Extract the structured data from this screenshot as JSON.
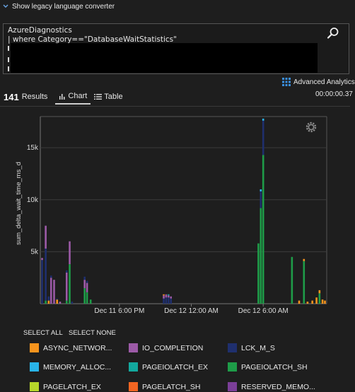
{
  "header": {
    "legacy_label": "Show legacy language converter"
  },
  "query": {
    "line1": "AzureDiagnostics",
    "line2": "| where Category==\"DatabaseWaitStatistics\""
  },
  "toolbar": {
    "advanced_label": "Advanced Analytics",
    "elapsed": "00:00:00.37"
  },
  "results": {
    "count": "141",
    "count_label": "Results",
    "tabs": [
      {
        "label": "Chart"
      },
      {
        "label": "Table"
      }
    ]
  },
  "chart_data": {
    "type": "bar",
    "stacked": true,
    "ylabel": "sum_delta_wait_time_ms_d",
    "ylim": [
      0,
      18000
    ],
    "y_ticks": [
      {
        "value": 5000,
        "label": "5k"
      },
      {
        "value": 10000,
        "label": "10k"
      },
      {
        "value": 15000,
        "label": "15k"
      }
    ],
    "x_ticks": [
      {
        "label": "Dec 11 6:00 PM",
        "hours": 18
      },
      {
        "label": "Dec 12 12:00 AM",
        "hours": 24
      },
      {
        "label": "Dec 12 6:00 AM",
        "hours": 30
      }
    ],
    "x_range_hours": [
      11.4,
      35.3
    ],
    "series_colors": {
      "ASYNC_NETWORK_IO": "#f7941d",
      "IO_COMPLETION": "#9c5aa7",
      "LCK_M_S": "#1f2f6e",
      "MEMORY_ALLOCATION_EXT": "#29b3e8",
      "PAGEIOLATCH_EX": "#13a89e",
      "PAGEIOLATCH_SH": "#1e9c48",
      "PAGELATCH_EX": "#b6d72a",
      "PAGELATCH_SH": "#f26522",
      "RESERVED_MEMORY_ALLOCATION_EXT": "#7b3f98"
    },
    "bars": [
      {
        "h": 11.55,
        "s": [
          [
            "LCK_M_S",
            4200
          ],
          [
            "IO_COMPLETION",
            200
          ]
        ]
      },
      {
        "h": 11.85,
        "s": [
          [
            "PAGEIOLATCH_SH",
            300
          ],
          [
            "LCK_M_S",
            5000
          ],
          [
            "IO_COMPLETION",
            2200
          ]
        ]
      },
      {
        "h": 12.1,
        "s": [
          [
            "ASYNC_NETWORK_IO",
            300
          ],
          [
            "LCK_M_S",
            400
          ]
        ]
      },
      {
        "h": 12.3,
        "s": [
          [
            "IO_COMPLETION",
            2500
          ],
          [
            "LCK_M_S",
            200
          ]
        ]
      },
      {
        "h": 12.55,
        "s": [
          [
            "IO_COMPLETION",
            2300
          ]
        ]
      },
      {
        "h": 12.8,
        "s": [
          [
            "ASYNC_NETWORK_IO",
            400
          ],
          [
            "LCK_M_S",
            100
          ]
        ]
      },
      {
        "h": 13.05,
        "s": [
          [
            "IO_COMPLETION",
            200
          ]
        ]
      },
      {
        "h": 13.6,
        "s": [
          [
            "PAGEIOLATCH_SH",
            300
          ],
          [
            "IO_COMPLETION",
            2700
          ],
          [
            "LCK_M_S",
            200
          ]
        ]
      },
      {
        "h": 13.85,
        "s": [
          [
            "PAGEIOLATCH_SH",
            3800
          ],
          [
            "IO_COMPLETION",
            2200
          ]
        ]
      },
      {
        "h": 14.05,
        "s": [
          [
            "LCK_M_S",
            200
          ]
        ]
      },
      {
        "h": 15.1,
        "s": [
          [
            "PAGEIOLATCH_SH",
            1500
          ],
          [
            "IO_COMPLETION",
            800
          ],
          [
            "LCK_M_S",
            300
          ]
        ]
      },
      {
        "h": 15.3,
        "s": [
          [
            "PAGEIOLATCH_SH",
            1100
          ],
          [
            "IO_COMPLETION",
            900
          ],
          [
            "LCK_M_S",
            200
          ]
        ]
      },
      {
        "h": 15.6,
        "s": [
          [
            "PAGEIOLATCH_SH",
            400
          ]
        ]
      },
      {
        "h": 21.7,
        "s": [
          [
            "LCK_M_S",
            500
          ],
          [
            "IO_COMPLETION",
            300
          ],
          [
            "ASYNC_NETWORK_IO",
            100
          ]
        ]
      },
      {
        "h": 21.9,
        "s": [
          [
            "LCK_M_S",
            600
          ],
          [
            "IO_COMPLETION",
            300
          ]
        ]
      },
      {
        "h": 22.1,
        "s": [
          [
            "LCK_M_S",
            600
          ],
          [
            "IO_COMPLETION",
            200
          ],
          [
            "PAGEIOLATCH_EX",
            100
          ]
        ]
      },
      {
        "h": 22.3,
        "s": [
          [
            "LCK_M_S",
            500
          ],
          [
            "IO_COMPLETION",
            200
          ]
        ]
      },
      {
        "h": 29.6,
        "s": [
          [
            "PAGEIOLATCH_SH",
            5800
          ]
        ]
      },
      {
        "h": 29.8,
        "s": [
          [
            "PAGEIOLATCH_SH",
            9200
          ],
          [
            "LCK_M_S",
            1600
          ],
          [
            "MEMORY_ALLOCATION_EXT",
            200
          ]
        ]
      },
      {
        "h": 30.0,
        "s": [
          [
            "PAGEIOLATCH_SH",
            14300
          ],
          [
            "LCK_M_S",
            3300
          ],
          [
            "MEMORY_ALLOCATION_EXT",
            200
          ]
        ]
      },
      {
        "h": 32.4,
        "s": [
          [
            "PAGEIOLATCH_SH",
            4500
          ]
        ]
      },
      {
        "h": 33.4,
        "s": [
          [
            "PAGEIOLATCH_SH",
            4100
          ],
          [
            "ASYNC_NETWORK_IO",
            200
          ]
        ]
      },
      {
        "h": 33.0,
        "s": [
          [
            "ASYNC_NETWORK_IO",
            300
          ]
        ]
      },
      {
        "h": 33.7,
        "s": [
          [
            "ASYNC_NETWORK_IO",
            200
          ]
        ]
      },
      {
        "h": 34.1,
        "s": [
          [
            "ASYNC_NETWORK_IO",
            300
          ]
        ]
      },
      {
        "h": 34.45,
        "s": [
          [
            "ASYNC_NETWORK_IO",
            600
          ]
        ]
      },
      {
        "h": 34.7,
        "s": [
          [
            "PAGEIOLATCH_SH",
            1000
          ],
          [
            "ASYNC_NETWORK_IO",
            300
          ]
        ]
      },
      {
        "h": 34.95,
        "s": [
          [
            "ASYNC_NETWORK_IO",
            400
          ]
        ]
      },
      {
        "h": 35.15,
        "s": [
          [
            "ASYNC_NETWORK_IO",
            300
          ]
        ]
      }
    ]
  },
  "legend": {
    "select_all": "SELECT ALL",
    "select_none": "SELECT NONE",
    "items": [
      {
        "label": "ASYNC_NETWOR...",
        "color": "#f7941d"
      },
      {
        "label": "IO_COMPLETION",
        "color": "#9c5aa7"
      },
      {
        "label": "LCK_M_S",
        "color": "#1f2f6e"
      },
      {
        "label": "MEMORY_ALLOC...",
        "color": "#29b3e8"
      },
      {
        "label": "PAGEIOLATCH_EX",
        "color": "#13a89e"
      },
      {
        "label": "PAGEIOLATCH_SH",
        "color": "#1e9c48"
      },
      {
        "label": "PAGELATCH_EX",
        "color": "#b6d72a"
      },
      {
        "label": "PAGELATCH_SH",
        "color": "#f26522"
      },
      {
        "label": "RESERVED_MEMO...",
        "color": "#7b3f98"
      }
    ]
  }
}
